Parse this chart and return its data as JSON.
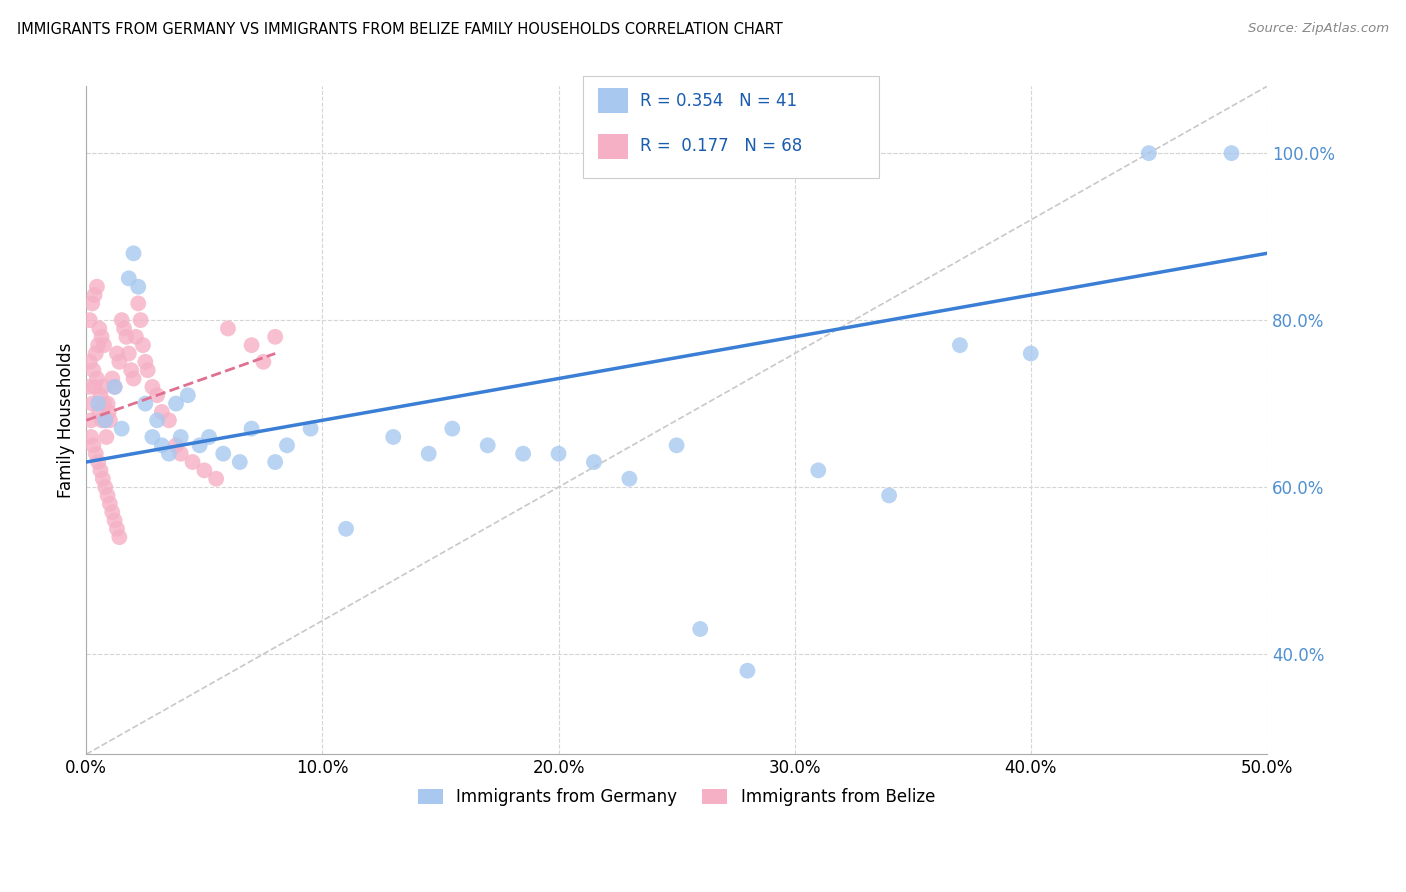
{
  "title": "IMMIGRANTS FROM GERMANY VS IMMIGRANTS FROM BELIZE FAMILY HOUSEHOLDS CORRELATION CHART",
  "source": "Source: ZipAtlas.com",
  "ylabel": "Family Households",
  "xlim": [
    0.0,
    50.0
  ],
  "ylim": [
    28.0,
    108.0
  ],
  "germany_R": 0.354,
  "germany_N": 41,
  "belize_R": 0.177,
  "belize_N": 68,
  "germany_color": "#a8c8f0",
  "belize_color": "#f5b0c5",
  "germany_line_color": "#3a7fd5",
  "belize_line_color": "#e07090",
  "ref_line_color": "#c8c8c8",
  "grid_color": "#d5d5d5",
  "right_tick_color": "#5090d0",
  "germany_x": [
    0.5,
    0.8,
    1.2,
    1.5,
    1.8,
    2.0,
    2.2,
    2.5,
    2.8,
    3.0,
    3.2,
    3.5,
    3.8,
    4.0,
    4.3,
    4.8,
    5.2,
    5.8,
    6.5,
    7.0,
    8.0,
    8.5,
    9.5,
    11.0,
    13.0,
    14.5,
    15.5,
    17.0,
    18.5,
    20.0,
    21.5,
    23.0,
    25.0,
    26.0,
    28.0,
    31.0,
    34.0,
    37.0,
    40.0,
    45.0,
    48.5
  ],
  "germany_y": [
    70.0,
    68.0,
    72.0,
    67.0,
    85.0,
    88.0,
    84.0,
    70.0,
    66.0,
    68.0,
    65.0,
    64.0,
    70.0,
    66.0,
    71.0,
    65.0,
    66.0,
    64.0,
    63.0,
    67.0,
    63.0,
    65.0,
    67.0,
    55.0,
    66.0,
    64.0,
    67.0,
    65.0,
    64.0,
    64.0,
    63.0,
    61.0,
    65.0,
    43.0,
    38.0,
    62.0,
    59.0,
    77.0,
    76.0,
    100.0,
    100.0
  ],
  "belize_x": [
    0.1,
    0.15,
    0.2,
    0.25,
    0.3,
    0.35,
    0.4,
    0.45,
    0.5,
    0.55,
    0.6,
    0.65,
    0.7,
    0.75,
    0.8,
    0.85,
    0.9,
    0.95,
    1.0,
    1.1,
    1.2,
    1.3,
    1.4,
    1.5,
    1.6,
    1.7,
    1.8,
    1.9,
    2.0,
    2.1,
    2.2,
    2.3,
    2.4,
    2.5,
    2.6,
    2.8,
    3.0,
    3.2,
    3.5,
    3.8,
    4.0,
    4.5,
    5.0,
    5.5,
    6.0,
    7.0,
    7.5,
    8.0,
    0.2,
    0.3,
    0.4,
    0.5,
    0.6,
    0.7,
    0.8,
    0.9,
    1.0,
    1.1,
    1.2,
    1.3,
    1.4,
    0.15,
    0.25,
    0.35,
    0.45,
    0.55,
    0.65,
    0.75
  ],
  "belize_y": [
    72.0,
    75.0,
    68.0,
    70.0,
    74.0,
    72.0,
    76.0,
    73.0,
    77.0,
    69.0,
    71.0,
    68.0,
    72.0,
    70.0,
    68.0,
    66.0,
    70.0,
    69.0,
    68.0,
    73.0,
    72.0,
    76.0,
    75.0,
    80.0,
    79.0,
    78.0,
    76.0,
    74.0,
    73.0,
    78.0,
    82.0,
    80.0,
    77.0,
    75.0,
    74.0,
    72.0,
    71.0,
    69.0,
    68.0,
    65.0,
    64.0,
    63.0,
    62.0,
    61.0,
    79.0,
    77.0,
    75.0,
    78.0,
    66.0,
    65.0,
    64.0,
    63.0,
    62.0,
    61.0,
    60.0,
    59.0,
    58.0,
    57.0,
    56.0,
    55.0,
    54.0,
    80.0,
    82.0,
    83.0,
    84.0,
    79.0,
    78.0,
    77.0
  ],
  "germany_line_x0": 0.0,
  "germany_line_y0": 63.0,
  "germany_line_x1": 50.0,
  "germany_line_y1": 88.0,
  "belize_line_x0": 0.0,
  "belize_line_y0": 68.0,
  "belize_line_x1": 8.0,
  "belize_line_y1": 76.0,
  "ref_line_x0": 0.0,
  "ref_line_y0": 28.0,
  "ref_line_x1": 50.0,
  "ref_line_y1": 108.0
}
